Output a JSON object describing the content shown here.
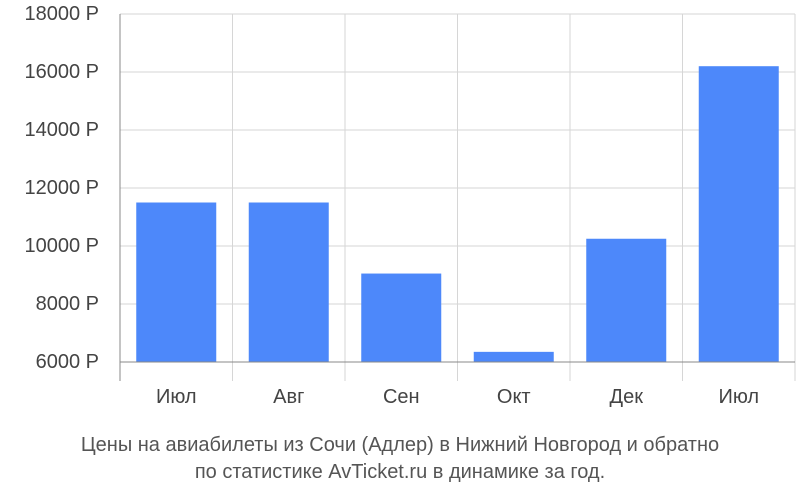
{
  "chart_data": {
    "type": "bar",
    "categories": [
      "Июл",
      "Авг",
      "Сен",
      "Окт",
      "Дек",
      "Июл"
    ],
    "values": [
      11500,
      11500,
      9050,
      6350,
      10250,
      16200
    ],
    "ylim": [
      6000,
      18000
    ],
    "yticks": [
      6000,
      8000,
      10000,
      12000,
      14000,
      16000,
      18000
    ],
    "ytick_labels": [
      "6000 Р",
      "8000 Р",
      "10000 Р",
      "12000 Р",
      "14000 Р",
      "16000 Р",
      "18000 Р"
    ],
    "grid": true,
    "bar_color": "#4d88fa"
  },
  "caption": {
    "line1": "Цены на авиабилеты из Сочи (Адлер) в Нижний Новгород и обратно",
    "line2": "по статистике AvTicket.ru в динамике за год."
  }
}
